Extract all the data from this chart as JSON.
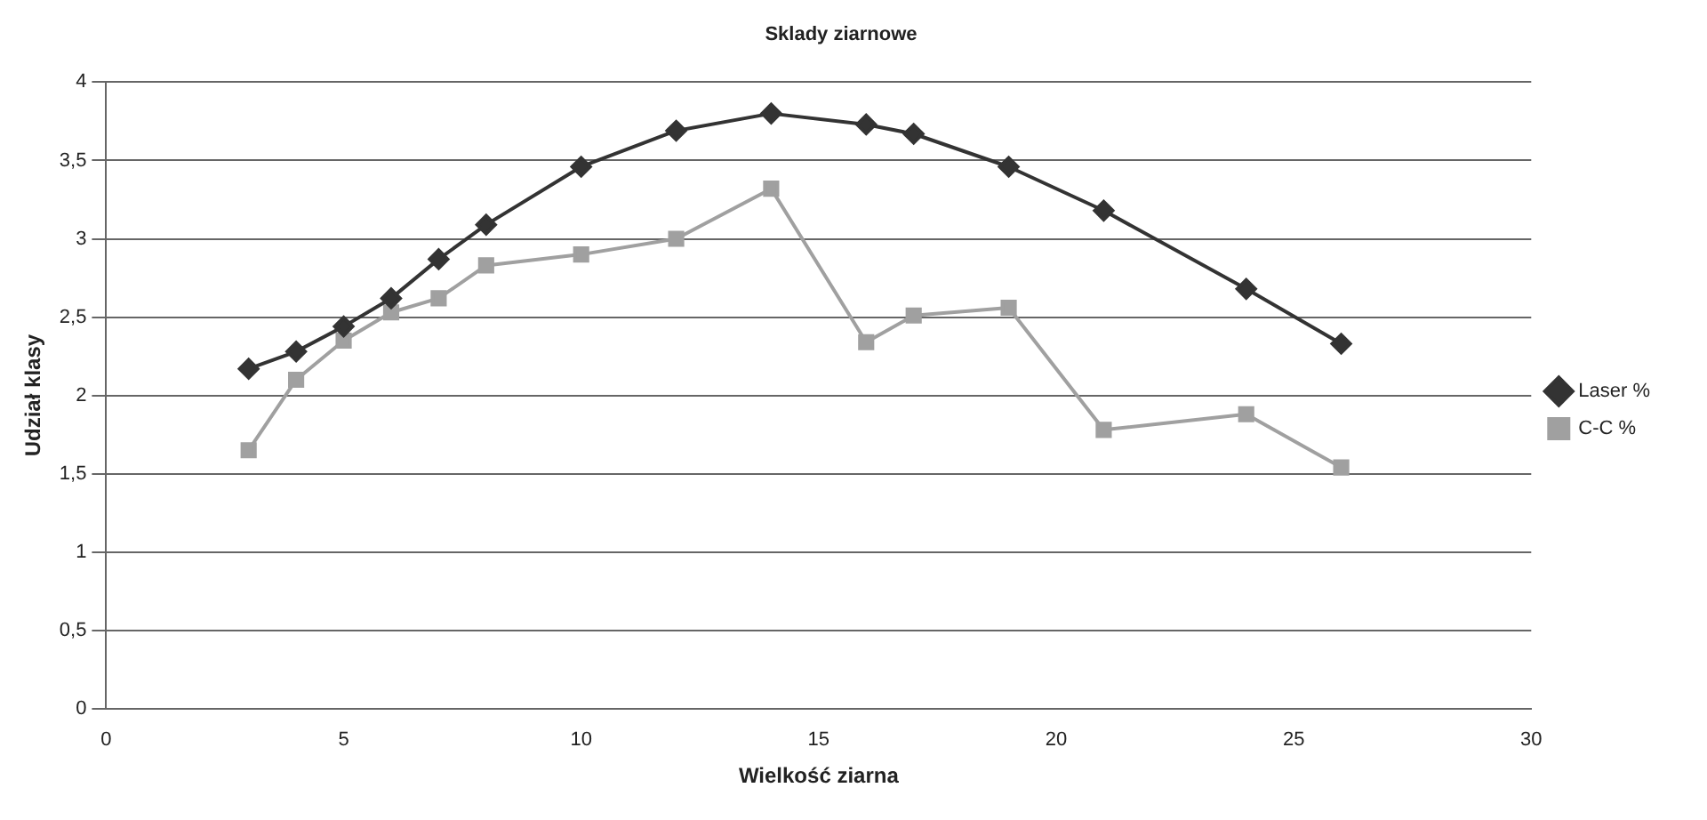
{
  "chart_data": {
    "type": "line",
    "title": "Sklady ziarnowe",
    "xlabel": "Wielkość ziarna",
    "ylabel": "Udział klasy",
    "xlim": [
      0,
      30
    ],
    "xticks": [
      0,
      5,
      10,
      15,
      20,
      25,
      30
    ],
    "ylim": [
      0,
      4
    ],
    "yticks": [
      0,
      {
        "value": 0.5,
        "label": "0,5"
      },
      1,
      {
        "value": 1.5,
        "label": "1,5"
      },
      2,
      {
        "value": 2.5,
        "label": "2,5"
      },
      3,
      {
        "value": 3.5,
        "label": "3,5"
      },
      4
    ],
    "grid": "y",
    "legend": "right",
    "series": [
      {
        "name": "Laser %",
        "color": "#333333",
        "marker": "diamond",
        "x": [
          3,
          4,
          5,
          6,
          7,
          8,
          10,
          12,
          14,
          16,
          17,
          19,
          21,
          24,
          26
        ],
        "values": [
          2.17,
          2.28,
          2.44,
          2.62,
          2.87,
          3.09,
          3.46,
          3.69,
          3.8,
          3.73,
          3.67,
          3.46,
          3.18,
          2.68,
          2.33
        ]
      },
      {
        "name": "C-C %",
        "color": "#a0a0a0",
        "marker": "square",
        "x": [
          3,
          4,
          5,
          6,
          7,
          8,
          10,
          12,
          14,
          16,
          17,
          19,
          21,
          24,
          26
        ],
        "values": [
          1.65,
          2.1,
          2.35,
          2.53,
          2.62,
          2.83,
          2.9,
          3.0,
          3.32,
          2.34,
          2.51,
          2.56,
          1.78,
          1.88,
          1.54
        ]
      }
    ]
  }
}
